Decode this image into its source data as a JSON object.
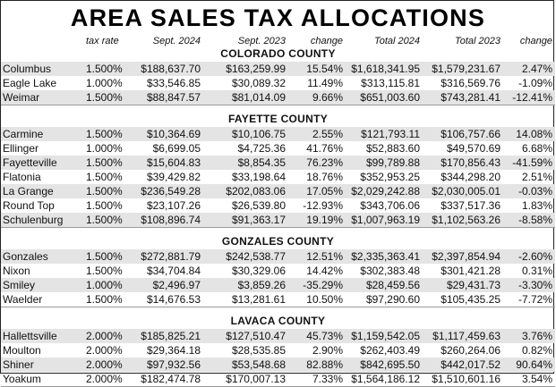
{
  "title": "AREA SALES TAX ALLOCATIONS",
  "columns": {
    "tax_rate": "tax rate",
    "sept_2024": "Sept. 2024",
    "sept_2023": "Sept. 2023",
    "change": "change",
    "total_2024": "Total 2024",
    "total_2023": "Total 2023",
    "total_change": "change"
  },
  "counties": [
    {
      "name": "COLORADO COUNTY",
      "rows": [
        {
          "city": "Columbus",
          "rate": "1.500%",
          "sept_2024": "$188,637.70",
          "sept_2023": "$163,259.99",
          "change": "15.54%",
          "total_2024": "$1,618,341.95",
          "total_2023": "$1,579,231.67",
          "total_change": "2.47%"
        },
        {
          "city": "Eagle Lake",
          "rate": "1.000%",
          "sept_2024": "$33,546.85",
          "sept_2023": "$30,089.32",
          "change": "11.49%",
          "total_2024": "$313,115.81",
          "total_2023": "$316,569.76",
          "total_change": "-1.09%"
        },
        {
          "city": "Weimar",
          "rate": "1.500%",
          "sept_2024": "$88,847.57",
          "sept_2023": "$81,014.09",
          "change": "9.66%",
          "total_2024": "$651,003.60",
          "total_2023": "$743,281.41",
          "total_change": "-12.41%"
        }
      ]
    },
    {
      "name": "FAYETTE COUNTY",
      "rows": [
        {
          "city": "Carmine",
          "rate": "1.500%",
          "sept_2024": "$10,364.69",
          "sept_2023": "$10,106.75",
          "change": "2.55%",
          "total_2024": "$121,793.11",
          "total_2023": "$106,757.66",
          "total_change": "14.08%"
        },
        {
          "city": "Ellinger",
          "rate": "1.000%",
          "sept_2024": "$6,699.05",
          "sept_2023": "$4,725.36",
          "change": "41.76%",
          "total_2024": "$52,883.60",
          "total_2023": "$49,570.69",
          "total_change": "6.68%"
        },
        {
          "city": "Fayetteville",
          "rate": "1.500%",
          "sept_2024": "$15,604.83",
          "sept_2023": "$8,854.35",
          "change": "76.23%",
          "total_2024": "$99,789.88",
          "total_2023": "$170,856.43",
          "total_change": "-41.59%"
        },
        {
          "city": "Flatonia",
          "rate": "1.500%",
          "sept_2024": "$39,429.82",
          "sept_2023": "$33,198.64",
          "change": "18.76%",
          "total_2024": "$352,953.25",
          "total_2023": "$344,298.20",
          "total_change": "2.51%"
        },
        {
          "city": "La Grange",
          "rate": "1.500%",
          "sept_2024": "$236,549.28",
          "sept_2023": "$202,083.06",
          "change": "17.05%",
          "total_2024": "$2,029,242.88",
          "total_2023": "$2,030,005.01",
          "total_change": "-0.03%"
        },
        {
          "city": "Round Top",
          "rate": "1.500%",
          "sept_2024": "$23,107.26",
          "sept_2023": "$26,539.80",
          "change": "-12.93%",
          "total_2024": "$343,706.06",
          "total_2023": "$337,517.36",
          "total_change": "1.83%"
        },
        {
          "city": "Schulenburg",
          "rate": "1.500%",
          "sept_2024": "$108,896.74",
          "sept_2023": "$91,363.17",
          "change": "19.19%",
          "total_2024": "$1,007,963.19",
          "total_2023": "$1,102,563.26",
          "total_change": "-8.58%"
        }
      ]
    },
    {
      "name": "GONZALES COUNTY",
      "rows": [
        {
          "city": "Gonzales",
          "rate": "1.500%",
          "sept_2024": "$272,881.79",
          "sept_2023": "$242,538.77",
          "change": "12.51%",
          "total_2024": "$2,335,363.41",
          "total_2023": "$2,397,854.94",
          "total_change": "-2.60%"
        },
        {
          "city": "Nixon",
          "rate": "1.500%",
          "sept_2024": "$34,704.84",
          "sept_2023": "$30,329.06",
          "change": "14.42%",
          "total_2024": "$302,383.48",
          "total_2023": "$301,421.28",
          "total_change": "0.31%"
        },
        {
          "city": "Smiley",
          "rate": "1.000%",
          "sept_2024": "$2,496.97",
          "sept_2023": "$3,859.26",
          "change": "-35.29%",
          "total_2024": "$28,459.56",
          "total_2023": "$29,431.73",
          "total_change": "-3.30%"
        },
        {
          "city": "Waelder",
          "rate": "1.500%",
          "sept_2024": "$14,676.53",
          "sept_2023": "$13,281.61",
          "change": "10.50%",
          "total_2024": "$97,290.60",
          "total_2023": "$105,435.25",
          "total_change": "-7.72%"
        }
      ]
    },
    {
      "name": "LAVACA COUNTY",
      "rows": [
        {
          "city": "Hallettsville",
          "rate": "2.000%",
          "sept_2024": "$185,825.21",
          "sept_2023": "$127,510.47",
          "change": "45.73%",
          "total_2024": "$1,159,542.05",
          "total_2023": "$1,117,459.63",
          "total_change": "3.76%"
        },
        {
          "city": "Moulton",
          "rate": "2.000%",
          "sept_2024": "$29,364.18",
          "sept_2023": "$28,535.85",
          "change": "2.90%",
          "total_2024": "$262,403.49",
          "total_2023": "$260,264.06",
          "total_change": "0.82%"
        },
        {
          "city": "Shiner",
          "rate": "2.000%",
          "sept_2024": "$97,932.56",
          "sept_2023": "$53,548.68",
          "change": "82.88%",
          "total_2024": "$842,695.50",
          "total_2023": "$442,017.52",
          "total_change": "90.64%"
        },
        {
          "city": "Yoakum",
          "rate": "2.000%",
          "sept_2024": "$182,474.78",
          "sept_2023": "$170,007.13",
          "change": "7.33%",
          "total_2024": "$1,564,186.12",
          "total_2023": "$1,510,601.16",
          "total_change": "3.54%"
        }
      ]
    }
  ]
}
